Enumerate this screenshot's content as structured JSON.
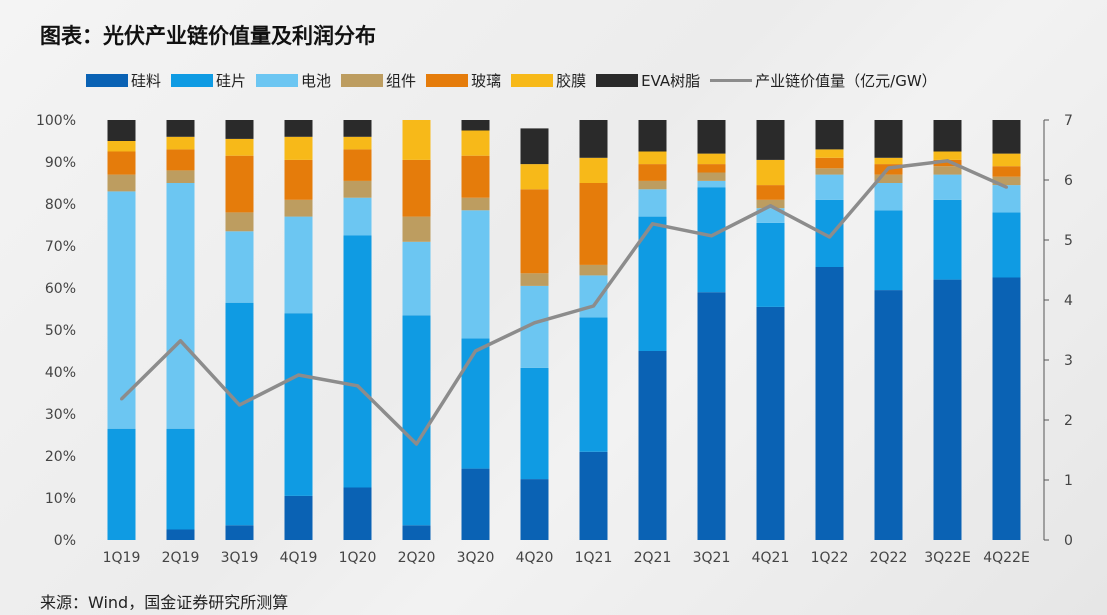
{
  "title": "图表：光伏产业链价值量及利润分布",
  "source": "来源：Wind，国金证券研究所测算",
  "chart_data": {
    "type": "bar",
    "stacked": true,
    "categories": [
      "1Q19",
      "2Q19",
      "3Q19",
      "4Q19",
      "1Q20",
      "2Q20",
      "3Q20",
      "4Q20",
      "1Q21",
      "2Q21",
      "3Q21",
      "4Q21",
      "1Q22",
      "2Q22",
      "3Q22E",
      "4Q22E"
    ],
    "y_ticks": [
      "0%",
      "10%",
      "20%",
      "30%",
      "40%",
      "50%",
      "60%",
      "70%",
      "80%",
      "90%",
      "100%"
    ],
    "y2_ticks": [
      "0",
      "1",
      "2",
      "3",
      "4",
      "5",
      "6",
      "7"
    ],
    "ylim": [
      0,
      100
    ],
    "y2lim": [
      0,
      7
    ],
    "series": [
      {
        "name": "硅料",
        "color": "#0a62b4",
        "values": [
          0,
          2.5,
          3.5,
          10.5,
          12.5,
          3.5,
          17,
          14.5,
          21,
          45,
          59,
          55.5,
          65,
          59.5,
          62,
          62.5
        ]
      },
      {
        "name": "硅片",
        "color": "#0f9be3",
        "values": [
          26.5,
          24,
          53,
          43.5,
          60,
          50,
          31,
          26.5,
          32,
          32,
          25,
          20,
          16,
          19,
          19,
          15.5
        ]
      },
      {
        "name": "电池",
        "color": "#6cc6f2",
        "values": [
          56.5,
          58.5,
          17,
          23,
          9,
          17.5,
          30.5,
          19.5,
          10,
          6.5,
          1.5,
          3.5,
          6,
          6.5,
          6,
          6.5
        ]
      },
      {
        "name": "组件",
        "color": "#bd9d60",
        "values": [
          4,
          3,
          4.5,
          4,
          4,
          6,
          3,
          3,
          2.5,
          2,
          2,
          2,
          1.5,
          2,
          2,
          2
        ]
      },
      {
        "name": "玻璃",
        "color": "#e57c0b",
        "values": [
          5.5,
          5,
          13.5,
          9.5,
          7.5,
          13.5,
          10,
          20,
          19.5,
          4,
          2,
          3.5,
          2.5,
          2.5,
          1.5,
          2.5
        ]
      },
      {
        "name": "胶膜",
        "color": "#f7b919",
        "values": [
          2.5,
          3,
          4,
          5.5,
          3,
          9.5,
          6,
          6,
          6,
          3,
          2.5,
          6,
          2,
          1.5,
          2,
          3
        ]
      },
      {
        "name": "EVA树脂",
        "color": "#2a2a2a",
        "values": [
          5,
          4,
          4.5,
          4,
          4,
          0,
          2.5,
          8.5,
          9,
          7.5,
          8,
          9.5,
          7,
          9,
          7.5,
          8
        ]
      }
    ],
    "line": {
      "name": "产业链价值量（亿元/GW）",
      "color": "#8c8c8c",
      "axis": "right",
      "values": [
        2.35,
        3.32,
        2.25,
        2.75,
        2.57,
        1.6,
        3.15,
        3.62,
        3.9,
        5.27,
        5.07,
        5.57,
        5.05,
        6.2,
        6.32,
        5.88
      ]
    }
  }
}
